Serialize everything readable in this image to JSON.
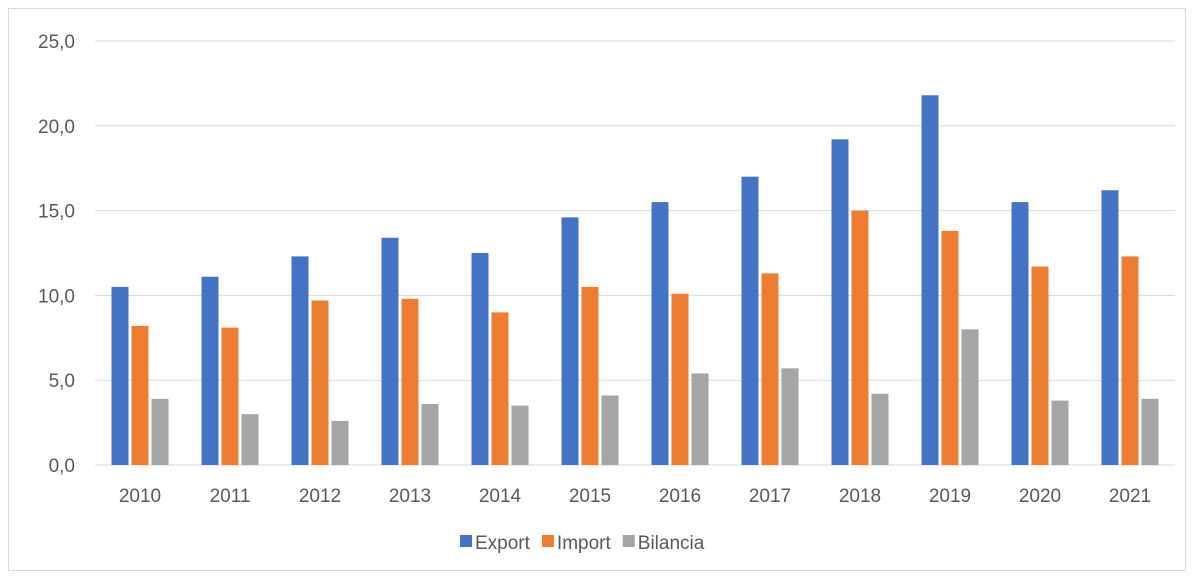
{
  "chart_data": {
    "type": "bar",
    "title": "",
    "xlabel": "",
    "ylabel": "",
    "categories": [
      "2010",
      "2011",
      "2012",
      "2013",
      "2014",
      "2015",
      "2016",
      "2017",
      "2018",
      "2019",
      "2020",
      "2021"
    ],
    "series": [
      {
        "name": "Export",
        "color": "#4472c4",
        "values": [
          10.5,
          11.1,
          12.3,
          13.4,
          12.5,
          14.6,
          15.5,
          17.0,
          19.2,
          21.8,
          15.5,
          16.2
        ]
      },
      {
        "name": "Import",
        "color": "#ed7d31",
        "values": [
          8.2,
          8.1,
          9.7,
          9.8,
          9.0,
          10.5,
          10.1,
          11.3,
          15.0,
          13.8,
          11.7,
          12.3
        ]
      },
      {
        "name": "Bilancia",
        "color": "#a5a5a5",
        "values": [
          3.9,
          3.0,
          2.6,
          3.6,
          3.5,
          4.1,
          5.4,
          5.7,
          4.2,
          8.0,
          3.8,
          3.9
        ]
      }
    ],
    "ylim": [
      0,
      25
    ],
    "yticks": [
      "0,0",
      "5,0",
      "10,0",
      "15,0",
      "20,0",
      "25,0"
    ],
    "grid": true,
    "legend_position": "bottom"
  }
}
